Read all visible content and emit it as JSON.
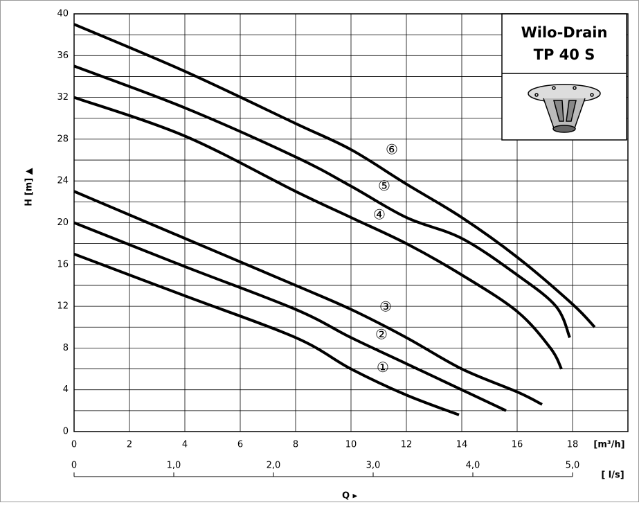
{
  "chart_data": {
    "type": "line",
    "title": "Wilo-Drain",
    "subtitle": "TP 40 S",
    "ylabel": "H [m] ▲",
    "xlabel": "Q ▸",
    "xunit": "[m³/h]",
    "x2unit": "[ l/s]",
    "xlim": [
      0,
      20
    ],
    "xticks": [
      0,
      2,
      4,
      6,
      8,
      10,
      12,
      14,
      16,
      18
    ],
    "ylim": [
      0,
      40
    ],
    "yticks": [
      0,
      4,
      8,
      12,
      16,
      20,
      24,
      28,
      32,
      36,
      40
    ],
    "x2lim": [
      0,
      5.5556
    ],
    "x2ticks": [
      0,
      {
        "value": 1,
        "label": "1,0"
      },
      {
        "value": 2,
        "label": "2,0"
      },
      {
        "value": 3,
        "label": "3,0"
      },
      {
        "value": 4,
        "label": "4,0"
      },
      {
        "value": 5,
        "label": "5,0"
      }
    ],
    "grid": true,
    "series": [
      {
        "name": "①",
        "color": "#000000",
        "x": [
          0,
          4,
          8,
          10,
          12,
          13.9
        ],
        "values": [
          17,
          13,
          9,
          6,
          3.5,
          1.6
        ]
      },
      {
        "name": "②",
        "color": "#000000",
        "x": [
          0,
          4,
          8,
          10,
          12,
          14,
          15.6
        ],
        "values": [
          20,
          15.8,
          11.7,
          9,
          6.5,
          4,
          2
        ]
      },
      {
        "name": "③",
        "color": "#000000",
        "x": [
          0,
          4,
          8,
          10,
          12,
          14,
          16,
          16.9
        ],
        "values": [
          23,
          18.5,
          14,
          11.7,
          9,
          6,
          3.8,
          2.6
        ]
      },
      {
        "name": "④",
        "color": "#000000",
        "x": [
          0,
          4,
          8,
          10,
          12,
          14,
          16,
          17.2,
          17.6
        ],
        "values": [
          32,
          28.3,
          23,
          20.5,
          18,
          15,
          11.5,
          8,
          6
        ]
      },
      {
        "name": "⑤",
        "color": "#000000",
        "x": [
          0,
          4,
          8,
          10,
          12,
          14,
          16,
          17.4,
          17.9
        ],
        "values": [
          35,
          31,
          26.3,
          23.5,
          20.5,
          18.5,
          15,
          12,
          9
        ]
      },
      {
        "name": "⑥",
        "color": "#000000",
        "x": [
          0,
          4,
          8,
          10,
          12,
          14,
          16,
          18,
          18.8
        ],
        "values": [
          39,
          34.5,
          29.5,
          27,
          23.7,
          20.5,
          16.7,
          12.2,
          10
        ]
      }
    ]
  }
}
